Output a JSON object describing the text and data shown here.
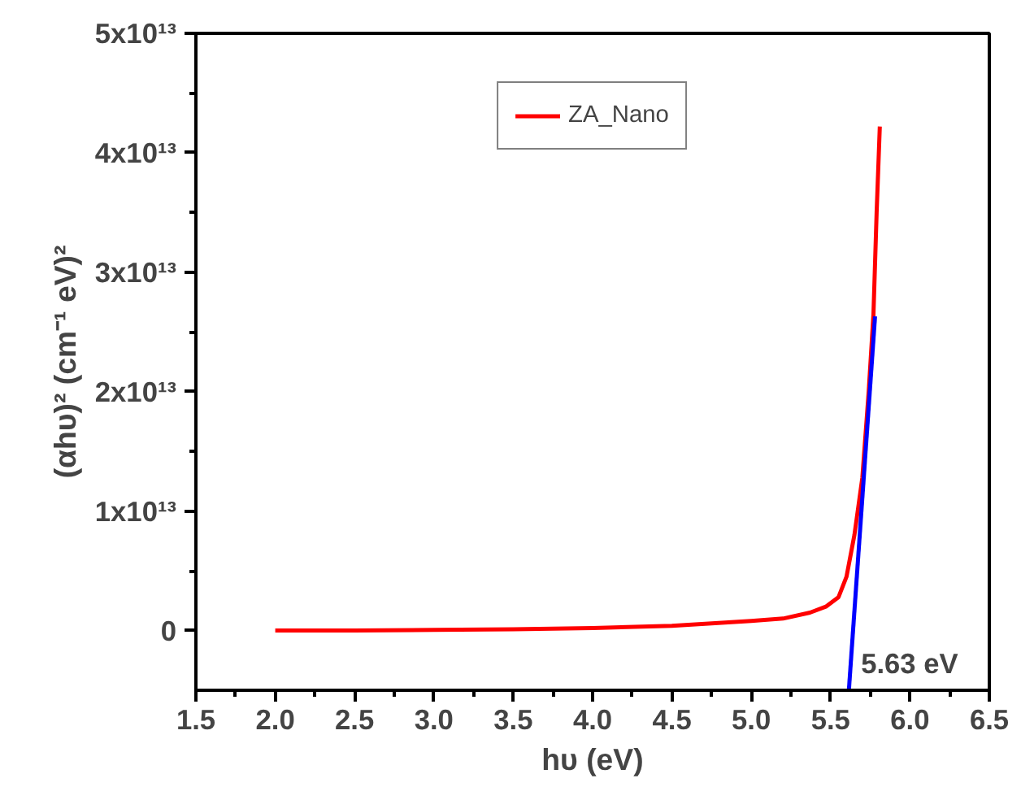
{
  "chart_data": {
    "type": "line",
    "xlabel": "hυ (eV)",
    "ylabel": "(αhυ)² (cm⁻¹ eV)²",
    "xlim": [
      1.5,
      6.5
    ],
    "xticks": [
      {
        "value": 1.5,
        "label": "1.5"
      },
      {
        "value": 2.0,
        "label": "2.0"
      },
      {
        "value": 2.5,
        "label": "2.5"
      },
      {
        "value": 3.0,
        "label": "3.0"
      },
      {
        "value": 3.5,
        "label": "3.5"
      },
      {
        "value": 4.0,
        "label": "4.0"
      },
      {
        "value": 4.5,
        "label": "4.5"
      },
      {
        "value": 5.0,
        "label": "5.0"
      },
      {
        "value": 5.5,
        "label": "5.5"
      },
      {
        "value": 6.0,
        "label": "6.0"
      },
      {
        "value": 6.5,
        "label": "6.5"
      }
    ],
    "ylim": [
      -5000000000000.0,
      50000000000000.0
    ],
    "yticks": [
      0,
      {
        "value": 10000000000000.0,
        "label": "1x10¹³"
      },
      {
        "value": 20000000000000.0,
        "label": "2x10¹³"
      },
      {
        "value": 30000000000000.0,
        "label": "3x10¹³"
      },
      {
        "value": 40000000000000.0,
        "label": "4x10¹³"
      },
      {
        "value": 50000000000000.0,
        "label": "5x10¹³"
      }
    ],
    "grid": false,
    "legend": "top",
    "marker": "none",
    "line_style": "solid",
    "series": [
      {
        "name": "ZA_Nano",
        "color": "#ff0000",
        "x": [
          2.0,
          2.5,
          3.0,
          3.5,
          4.0,
          4.5,
          5.0,
          5.2,
          5.37,
          5.47,
          5.55,
          5.6,
          5.65,
          5.7,
          5.74,
          5.77,
          5.79,
          5.81
        ],
        "values": [
          0,
          0,
          50000000000.0,
          100000000000.0,
          200000000000.0,
          400000000000.0,
          800000000000.0,
          1000000000000.0,
          1500000000000.0,
          2000000000000.0,
          2800000000000.0,
          4500000000000.0,
          8000000000000.0,
          12800000000000.0,
          20000000000000.0,
          26500000000000.0,
          35000000000000.0,
          42200000000000.0
        ]
      },
      {
        "type": "line",
        "color": "#0000ff",
        "x": [
          5.615,
          5.78
        ],
        "values": [
          -5000000000000.0,
          26300000000000.0
        ]
      }
    ],
    "annotations": [
      {
        "text": "5.63 eV",
        "x": 5.63,
        "y": 0
      }
    ]
  }
}
